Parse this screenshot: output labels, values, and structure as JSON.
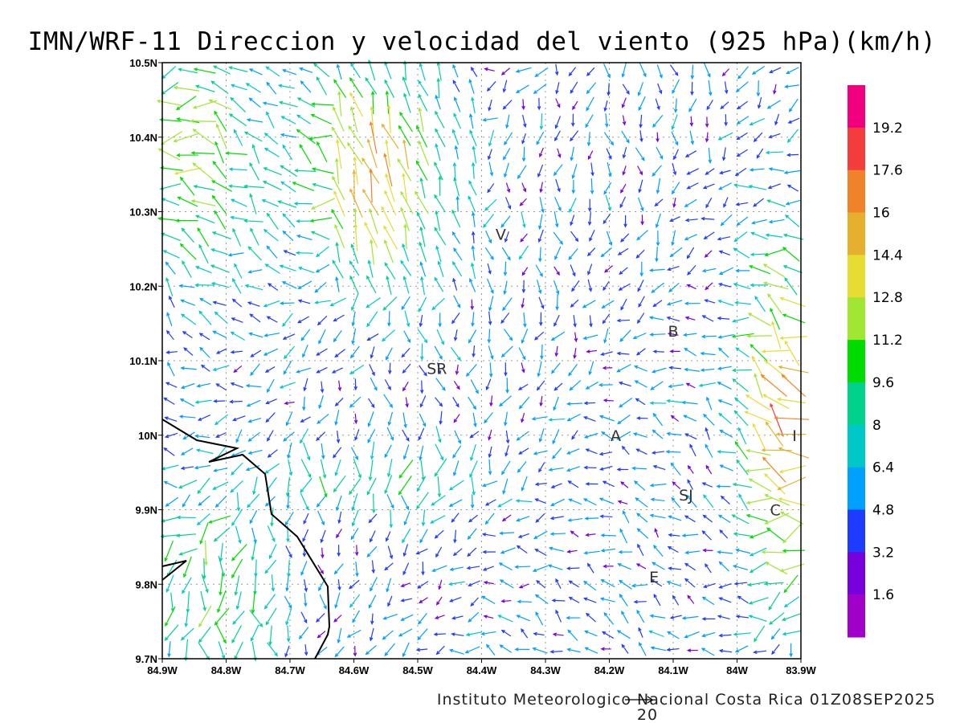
{
  "title": "IMN/WRF-11 Direccion y velocidad del viento (925 hPa)(km/h)",
  "footer": "Instituto Meteorologico Nacional Costa Rica  01Z08SEP2025",
  "reference_vector": {
    "label": "20",
    "value": 20
  },
  "map": {
    "lon_range": [
      -84.9,
      -83.9
    ],
    "lat_range": [
      9.7,
      10.5
    ],
    "x_ticks": [
      "84.9W",
      "84.8W",
      "84.7W",
      "84.6W",
      "84.5W",
      "84.4W",
      "84.3W",
      "84.2W",
      "84.1W",
      "84W",
      "83.9W"
    ],
    "y_ticks": [
      "10.5N",
      "10.4N",
      "10.3N",
      "10.2N",
      "10.1N",
      "10N",
      "9.9N",
      "9.8N",
      "9.7N"
    ],
    "stations": [
      {
        "label": "V",
        "lon": -84.37,
        "lat": 10.27
      },
      {
        "label": "B",
        "lon": -84.1,
        "lat": 10.14
      },
      {
        "label": "SR",
        "lon": -84.47,
        "lat": 10.09
      },
      {
        "label": "A",
        "lon": -84.19,
        "lat": 10.0
      },
      {
        "label": "I",
        "lon": -83.91,
        "lat": 10.0
      },
      {
        "label": "SJ",
        "lon": -84.08,
        "lat": 9.92
      },
      {
        "label": "C",
        "lon": -83.94,
        "lat": 9.9
      },
      {
        "label": "E",
        "lon": -84.13,
        "lat": 9.81
      }
    ]
  },
  "colorbar": {
    "labels": [
      "19.2",
      "17.6",
      "16",
      "14.4",
      "12.8",
      "11.2",
      "9.6",
      "8",
      "6.4",
      "4.8",
      "3.2",
      "1.6"
    ],
    "colors": [
      "#f0007f",
      "#f53c3c",
      "#f0822a",
      "#e6af2d",
      "#e6dc32",
      "#a0e632",
      "#00dc00",
      "#00d28c",
      "#00c8c8",
      "#00a0ff",
      "#1e3cff",
      "#7800dc",
      "#a000c8"
    ]
  }
}
